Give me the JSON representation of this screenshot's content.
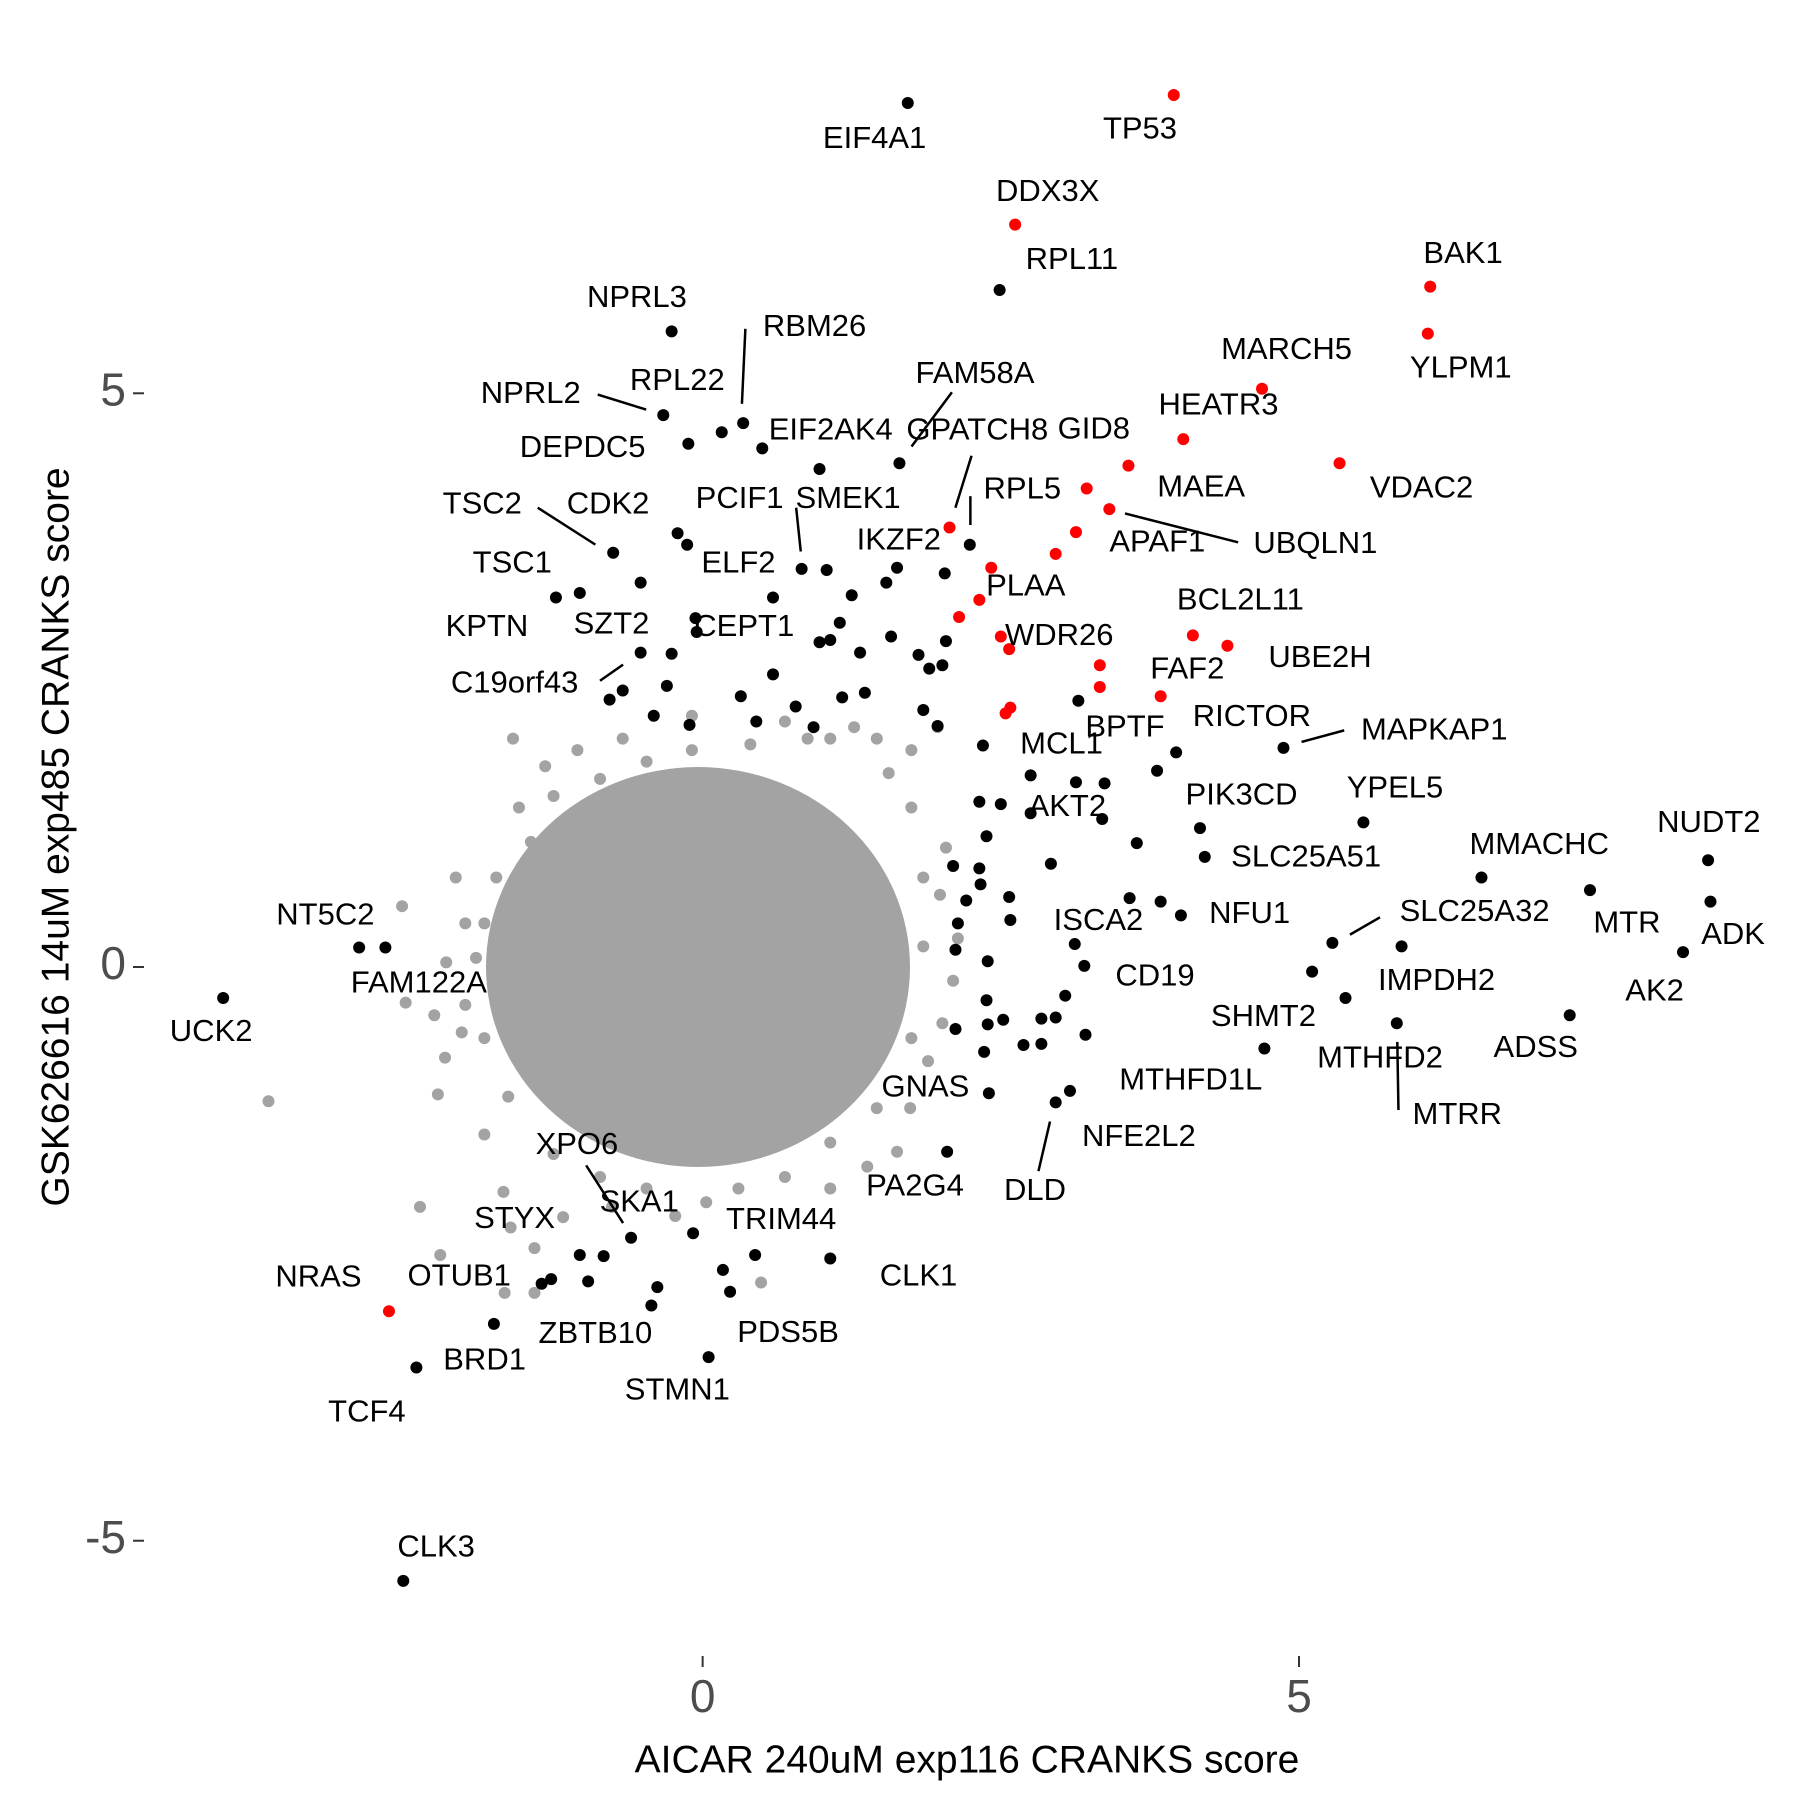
{
  "chart_data": {
    "type": "scatter",
    "x_label": "AICAR 240uM exp116 CRANKS score",
    "y_label": "GSK626616 14uM exp485 CRANKS score",
    "xlim": [
      -4.6,
      9.1
    ],
    "ylim": [
      -5.9,
      7.8
    ],
    "xticks": [
      0,
      5
    ],
    "yticks": [
      -5,
      0,
      5
    ],
    "grid": false,
    "series": [
      {
        "color": "#a3a3a3",
        "x": [
          -2.52,
          -3.64,
          -2.2,
          -2.22,
          -2.37,
          -2.49,
          -2.25,
          -2.15,
          -1.99,
          -2.02,
          -2.16,
          -1.83,
          -1.67,
          -1.61,
          -1.41,
          -1.17,
          -0.76,
          -0.23,
          0.03,
          0.49,
          1.07,
          1.38,
          1.63,
          1.74,
          1.89,
          2.01,
          2.1,
          2.14,
          1.99,
          2.04,
          1.97,
          1.75,
          1.46,
          1.07,
          0.88,
          0.4,
          -0.09,
          -0.47,
          -0.86,
          -1.25,
          -1.54,
          -1.44,
          -1.73,
          -1.83,
          -1.83,
          -1.63,
          -1.25,
          -0.86,
          -0.47,
          0.3,
          0.69,
          1.07,
          1.46,
          1.75,
          1.85,
          1.85,
          1.75,
          1.56,
          -1.59,
          -1.32,
          -1.05,
          -0.67,
          -0.09,
          0.69,
          1.27,
          -1.99,
          -1.9,
          -2.07,
          -1.41,
          -1.66
        ],
        "values": [
          0.53,
          -1.17,
          -2.51,
          -1.11,
          -2.09,
          -0.31,
          -0.42,
          0.04,
          -0.33,
          -0.57,
          -0.79,
          -1.46,
          -1.96,
          -2.27,
          -2.45,
          -2.18,
          -2.09,
          -2.17,
          -2.05,
          -2.75,
          -1.93,
          -1.74,
          -1.61,
          -1.23,
          -0.82,
          -0.49,
          -0.12,
          0.25,
          0.63,
          1.04,
          2.09,
          1.89,
          1.99,
          1.99,
          1.99,
          1.94,
          1.89,
          1.79,
          1.64,
          1.49,
          1.39,
          1.09,
          0.78,
          0.38,
          -0.62,
          -1.13,
          -1.63,
          -1.83,
          -1.93,
          -1.93,
          -1.83,
          -1.53,
          -1.23,
          -0.62,
          0.18,
          0.78,
          1.39,
          1.69,
          1.99,
          1.75,
          1.89,
          1.99,
          2.19,
          2.14,
          2.09,
          0.38,
          0.08,
          0.78,
          -2.84,
          -2.84
        ]
      },
      {
        "color": "#000000",
        "x": [
          1.72,
          2.49,
          -0.26,
          0.34,
          0.16,
          -0.33,
          -0.12,
          1.65,
          0.5,
          0.98,
          2.03,
          2.24,
          0.83,
          1.04,
          -0.21,
          -0.13,
          -0.75,
          -1.03,
          -1.23,
          -0.52,
          0.59,
          1.54,
          1.63,
          1.25,
          -0.06,
          -0.52,
          -0.05,
          -0.26,
          -0.3,
          -0.67,
          -0.78,
          -0.41,
          -0.11,
          0.32,
          0.45,
          0.59,
          0.78,
          0.93,
          0.98,
          1.07,
          1.15,
          1.32,
          1.58,
          1.36,
          1.17,
          1.81,
          1.9,
          2.01,
          2.04,
          1.85,
          1.97,
          2.35,
          2.75,
          3.15,
          3.97,
          3.81,
          4.87,
          2.5,
          3.13,
          3.37,
          3.35,
          2.32,
          2.38,
          2.75,
          3.64,
          4.17,
          4.21,
          5.54,
          6.53,
          8.43,
          7.44,
          8.45,
          8.22,
          7.27,
          5.28,
          5.86,
          5.11,
          5.39,
          5.82,
          4.71,
          4.01,
          3.84,
          3.58,
          3.12,
          3.08,
          2.96,
          2.4,
          2.05,
          1.07,
          0.44,
          0.23,
          0.05,
          -0.43,
          -0.08,
          -0.6,
          -1.03,
          -1.27,
          -1.75,
          -2.4,
          -2.51,
          -4.02,
          -2.88,
          -2.66,
          -0.83,
          -0.96,
          -1.35,
          -0.38,
          0.17,
          2.12,
          2.39,
          2.52,
          2.36,
          2.69,
          2.84,
          2.96,
          2.84,
          3.21,
          3.04,
          3.2,
          2.38,
          2.39,
          2.12,
          2.14,
          2.58,
          2.57,
          2.33,
          2.32,
          2.1,
          2.21,
          2.92
        ],
        "values": [
          7.53,
          5.9,
          5.54,
          4.74,
          4.66,
          4.81,
          4.56,
          4.39,
          4.52,
          4.34,
          3.43,
          3.68,
          3.47,
          3.46,
          3.78,
          3.68,
          3.61,
          3.26,
          3.22,
          3.35,
          3.22,
          3.35,
          3.48,
          3.24,
          3.04,
          2.74,
          2.92,
          2.73,
          2.45,
          2.41,
          2.33,
          2.19,
          2.11,
          2.36,
          2.14,
          2.55,
          2.27,
          2.09,
          2.83,
          2.85,
          3.0,
          2.74,
          2.88,
          2.39,
          2.35,
          2.72,
          2.6,
          2.63,
          2.84,
          2.24,
          2.1,
          1.93,
          1.67,
          2.32,
          1.87,
          1.71,
          1.91,
          1.42,
          1.61,
          1.6,
          1.29,
          1.44,
          1.14,
          1.34,
          1.08,
          1.21,
          0.96,
          1.26,
          0.78,
          0.93,
          0.67,
          0.57,
          0.13,
          -0.42,
          0.21,
          0.18,
          -0.04,
          -0.27,
          -0.49,
          -0.71,
          0.45,
          0.57,
          0.6,
          0.2,
          -1.08,
          -1.18,
          -1.1,
          -1.61,
          -2.54,
          -2.51,
          -2.83,
          -3.4,
          -2.95,
          -2.32,
          -2.36,
          -2.51,
          -2.72,
          -3.11,
          -3.49,
          -5.35,
          -0.27,
          0.17,
          0.17,
          -2.52,
          -2.74,
          -2.76,
          -2.79,
          -2.64,
          -0.54,
          -0.5,
          -0.46,
          -0.74,
          -0.68,
          -0.45,
          -0.44,
          -0.67,
          -0.59,
          -0.25,
          0.01,
          -0.29,
          0.05,
          0.15,
          0.38,
          0.41,
          0.61,
          0.72,
          0.86,
          0.88,
          0.58,
          0.9
        ],
        "labels": [
          "EIF4A1",
          "RPL11",
          "NPRL3",
          "RBM26",
          "RPL22",
          "NPRL2",
          "DEPDC5",
          "FAM58A",
          "EIF2AK4",
          null,
          "IKZF2",
          "RPL5",
          "PCIF1",
          "SMEK1",
          "CDK2",
          null,
          "TSC2",
          "TSC1",
          "KPTN",
          "SZT2",
          "ELF2",
          null,
          null,
          null,
          "CEPT1",
          "C19orf43",
          null,
          null,
          null,
          null,
          null,
          null,
          null,
          null,
          null,
          null,
          null,
          null,
          null,
          null,
          null,
          null,
          null,
          null,
          null,
          null,
          null,
          null,
          null,
          null,
          null,
          null,
          "MCL1",
          "BPTF",
          "RICTOR",
          null,
          "MAPKAP1",
          "AKT2",
          null,
          null,
          null,
          null,
          null,
          null,
          null,
          "PIK3CD",
          "SLC25A51",
          "YPEL5",
          "MMACHC",
          "NUDT2",
          "MTR",
          "ADK",
          "AK2",
          "ADSS",
          "SLC25A32",
          "IMPDH2",
          "SHMT2",
          "MTHFD2",
          "MTRR",
          "MTHFD1L",
          "NFU1",
          "ISCA2",
          null,
          "CD19",
          "NFE2L2",
          "DLD",
          "GNAS",
          "PA2G4",
          "CLK1",
          "TRIM44",
          "PDS5B",
          "STMN1",
          "ZBTB10",
          "SKA1",
          "XPO6",
          "STYX",
          "OTUB1",
          "BRD1",
          "TCF4",
          "CLK3",
          "UCK2",
          "NT5C2",
          "FAM122A",
          null,
          null,
          null,
          null,
          null,
          null,
          null,
          null,
          null,
          null,
          null,
          null,
          null,
          null,
          null,
          null,
          null,
          null,
          null,
          null,
          null,
          null,
          null,
          null,
          null,
          null,
          null
        ]
      },
      {
        "color": "#ff0000",
        "x": [
          3.95,
          2.62,
          6.1,
          6.08,
          4.69,
          4.03,
          5.34,
          3.57,
          3.22,
          3.41,
          3.13,
          2.96,
          2.07,
          2.42,
          2.32,
          2.15,
          2.5,
          2.57,
          4.11,
          4.4,
          3.33,
          3.33,
          3.84,
          2.58,
          2.54,
          -2.63
        ],
        "values": [
          7.6,
          6.47,
          5.93,
          5.52,
          5.04,
          4.6,
          4.39,
          4.37,
          4.17,
          3.99,
          3.79,
          3.6,
          3.83,
          3.48,
          3.2,
          3.05,
          2.88,
          2.77,
          2.89,
          2.8,
          2.63,
          2.44,
          2.36,
          2.26,
          2.21,
          -3.0
        ],
        "labels": [
          "TP53",
          "DDX3X",
          "BAK1",
          "YLPM1",
          "MARCH5",
          "HEATR3",
          "VDAC2",
          "GID8",
          "MAEA",
          "UBQLN1",
          "APAF1",
          null,
          "GPATCH8",
          null,
          "PLAA",
          null,
          "WDR26",
          null,
          "BCL2L11",
          "UBE2H",
          null,
          null,
          "FAF2",
          null,
          null,
          "NRAS"
        ]
      }
    ]
  }
}
